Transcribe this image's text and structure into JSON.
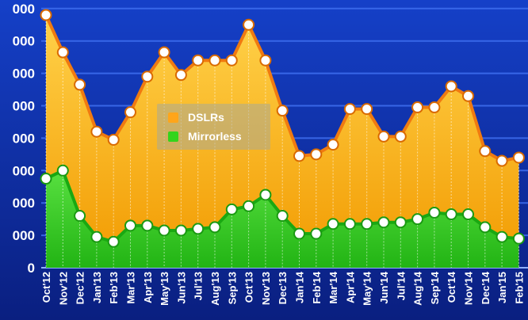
{
  "chart_data": {
    "type": "area",
    "title": "",
    "xlabel": "",
    "ylabel": "",
    "y_tick_labels": [
      "0",
      "000",
      "000",
      "000",
      "000",
      "000",
      "000",
      "000",
      "000"
    ],
    "ylim": [
      0,
      8
    ],
    "grid": true,
    "legend_position": "center-left",
    "categories": [
      "Oct'12",
      "Nov'12",
      "Dec'12",
      "Jan'13",
      "Feb'13",
      "Mar'13",
      "Apr'13",
      "May'13",
      "Jun'13",
      "Jul'13",
      "Aug'13",
      "Sep'13",
      "Oct'13",
      "Nov'13",
      "Dec'13",
      "Jan'14",
      "Feb'14",
      "Mar'14",
      "Apr'14",
      "May'14",
      "Jun'14",
      "Jul'14",
      "Aug'14",
      "Sep'14",
      "Oct'14",
      "Nov'14",
      "Dec'14",
      "Jan'15",
      "Feb'15"
    ],
    "series": [
      {
        "name": "DSLRs",
        "color": "#f5a100",
        "line_color": "#f07a10",
        "values": [
          7.8,
          6.65,
          5.65,
          4.2,
          3.95,
          4.8,
          5.9,
          6.65,
          5.95,
          6.4,
          6.4,
          6.4,
          7.5,
          6.4,
          4.85,
          3.45,
          3.5,
          3.8,
          4.9,
          4.9,
          4.05,
          4.05,
          4.95,
          4.95,
          5.6,
          5.3,
          3.6,
          3.3,
          3.4
        ]
      },
      {
        "name": "Mirrorless",
        "color": "#33cc22",
        "line_color": "#1aa812",
        "values": [
          2.75,
          3.0,
          1.6,
          0.95,
          0.8,
          1.3,
          1.3,
          1.15,
          1.15,
          1.2,
          1.25,
          1.8,
          1.9,
          2.25,
          1.6,
          1.05,
          1.05,
          1.35,
          1.35,
          1.35,
          1.4,
          1.4,
          1.5,
          1.7,
          1.65,
          1.65,
          1.25,
          0.95,
          0.9
        ]
      }
    ]
  }
}
